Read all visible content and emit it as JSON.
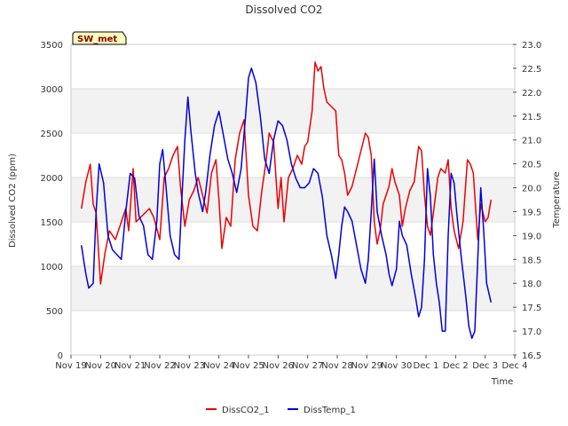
{
  "chart_data": {
    "type": "line",
    "title": "Dissolved CO2",
    "station_label": "SW_met",
    "xlabel": "Time",
    "ylabel_left": "Dissolved CO2 (ppm)",
    "ylabel_right": "Temperature",
    "ylim_left": [
      0,
      3500
    ],
    "ylim_right": [
      16.5,
      23.0
    ],
    "xlim": [
      0,
      15
    ],
    "x_tick_labels": [
      "Nov 19",
      "Nov 20",
      "Nov 21",
      "Nov 22",
      "Nov 23",
      "Nov 24",
      "Nov 25",
      "Nov 26",
      "Nov 27",
      "Nov 28",
      "Nov 29",
      "Nov 30",
      "Dec 1",
      "Dec 2",
      "Dec 3",
      "Dec 4"
    ],
    "y_ticks_left": [
      0,
      500,
      1000,
      1500,
      2000,
      2500,
      3000,
      3500
    ],
    "y_ticks_right": [
      16.5,
      17.0,
      17.5,
      18.0,
      18.5,
      19.0,
      19.5,
      20.0,
      20.5,
      21.0,
      21.5,
      22.0,
      22.5,
      23.0
    ],
    "grid": true,
    "legend_position": "bottom-center",
    "series": [
      {
        "name": "DissCO2_1",
        "color": "#ee0000",
        "axis": "left",
        "points": [
          [
            0.35,
            1650
          ],
          [
            0.5,
            1950
          ],
          [
            0.65,
            2150
          ],
          [
            0.75,
            1700
          ],
          [
            0.85,
            1600
          ],
          [
            1.0,
            800
          ],
          [
            1.15,
            1150
          ],
          [
            1.3,
            1400
          ],
          [
            1.5,
            1300
          ],
          [
            1.7,
            1500
          ],
          [
            1.85,
            1650
          ],
          [
            1.95,
            1400
          ],
          [
            2.1,
            2100
          ],
          [
            2.2,
            1500
          ],
          [
            2.35,
            1550
          ],
          [
            2.5,
            1600
          ],
          [
            2.65,
            1650
          ],
          [
            2.8,
            1550
          ],
          [
            3.0,
            1300
          ],
          [
            3.15,
            2000
          ],
          [
            3.3,
            2100
          ],
          [
            3.45,
            2250
          ],
          [
            3.6,
            2350
          ],
          [
            3.7,
            1900
          ],
          [
            3.85,
            1450
          ],
          [
            4.0,
            1750
          ],
          [
            4.15,
            1850
          ],
          [
            4.3,
            2000
          ],
          [
            4.45,
            1800
          ],
          [
            4.6,
            1600
          ],
          [
            4.75,
            2050
          ],
          [
            4.9,
            2200
          ],
          [
            5.0,
            1750
          ],
          [
            5.1,
            1200
          ],
          [
            5.25,
            1550
          ],
          [
            5.4,
            1450
          ],
          [
            5.55,
            2200
          ],
          [
            5.7,
            2500
          ],
          [
            5.85,
            2650
          ],
          [
            6.0,
            1800
          ],
          [
            6.15,
            1450
          ],
          [
            6.3,
            1400
          ],
          [
            6.45,
            1850
          ],
          [
            6.6,
            2200
          ],
          [
            6.7,
            2500
          ],
          [
            6.85,
            2400
          ],
          [
            7.0,
            1650
          ],
          [
            7.1,
            2000
          ],
          [
            7.2,
            1500
          ],
          [
            7.35,
            2000
          ],
          [
            7.5,
            2100
          ],
          [
            7.65,
            2250
          ],
          [
            7.8,
            2150
          ],
          [
            7.9,
            2350
          ],
          [
            8.0,
            2400
          ],
          [
            8.15,
            2750
          ],
          [
            8.25,
            3300
          ],
          [
            8.35,
            3200
          ],
          [
            8.45,
            3250
          ],
          [
            8.55,
            3000
          ],
          [
            8.65,
            2850
          ],
          [
            8.8,
            2800
          ],
          [
            8.95,
            2750
          ],
          [
            9.05,
            2250
          ],
          [
            9.15,
            2200
          ],
          [
            9.25,
            2050
          ],
          [
            9.35,
            1800
          ],
          [
            9.5,
            1900
          ],
          [
            9.65,
            2100
          ],
          [
            9.8,
            2300
          ],
          [
            9.95,
            2500
          ],
          [
            10.05,
            2450
          ],
          [
            10.15,
            2250
          ],
          [
            10.25,
            1500
          ],
          [
            10.35,
            1250
          ],
          [
            10.45,
            1400
          ],
          [
            10.55,
            1700
          ],
          [
            10.65,
            1800
          ],
          [
            10.75,
            1900
          ],
          [
            10.85,
            2100
          ],
          [
            10.95,
            1950
          ],
          [
            11.1,
            1800
          ],
          [
            11.2,
            1450
          ],
          [
            11.3,
            1650
          ],
          [
            11.45,
            1850
          ],
          [
            11.6,
            1950
          ],
          [
            11.75,
            2350
          ],
          [
            11.85,
            2300
          ],
          [
            11.95,
            1800
          ],
          [
            12.05,
            1450
          ],
          [
            12.15,
            1350
          ],
          [
            12.25,
            1600
          ],
          [
            12.4,
            2000
          ],
          [
            12.5,
            2100
          ],
          [
            12.65,
            2050
          ],
          [
            12.75,
            2200
          ],
          [
            12.85,
            1650
          ],
          [
            12.95,
            1400
          ],
          [
            13.1,
            1200
          ],
          [
            13.25,
            1500
          ],
          [
            13.4,
            2200
          ],
          [
            13.5,
            2150
          ],
          [
            13.6,
            2050
          ],
          [
            13.75,
            1300
          ],
          [
            13.85,
            1700
          ],
          [
            14.0,
            1500
          ],
          [
            14.1,
            1550
          ],
          [
            14.2,
            1750
          ]
        ]
      },
      {
        "name": "DissTemp_1",
        "color": "#0000dd",
        "axis": "right",
        "points": [
          [
            0.35,
            18.8
          ],
          [
            0.5,
            18.2
          ],
          [
            0.6,
            17.9
          ],
          [
            0.75,
            18.0
          ],
          [
            0.85,
            19.5
          ],
          [
            0.95,
            20.5
          ],
          [
            1.1,
            20.1
          ],
          [
            1.25,
            19.0
          ],
          [
            1.4,
            18.7
          ],
          [
            1.55,
            18.6
          ],
          [
            1.7,
            18.5
          ],
          [
            1.85,
            19.5
          ],
          [
            2.0,
            20.3
          ],
          [
            2.15,
            20.2
          ],
          [
            2.3,
            19.4
          ],
          [
            2.45,
            19.2
          ],
          [
            2.6,
            18.6
          ],
          [
            2.75,
            18.5
          ],
          [
            2.9,
            19.3
          ],
          [
            3.0,
            20.5
          ],
          [
            3.1,
            20.8
          ],
          [
            3.2,
            20.1
          ],
          [
            3.35,
            19.0
          ],
          [
            3.5,
            18.6
          ],
          [
            3.65,
            18.5
          ],
          [
            3.75,
            19.8
          ],
          [
            3.85,
            21.0
          ],
          [
            3.95,
            21.9
          ],
          [
            4.05,
            21.2
          ],
          [
            4.2,
            20.3
          ],
          [
            4.3,
            19.9
          ],
          [
            4.45,
            19.5
          ],
          [
            4.55,
            19.9
          ],
          [
            4.7,
            20.7
          ],
          [
            4.85,
            21.3
          ],
          [
            5.0,
            21.6
          ],
          [
            5.15,
            21.1
          ],
          [
            5.3,
            20.6
          ],
          [
            5.45,
            20.3
          ],
          [
            5.6,
            19.9
          ],
          [
            5.75,
            20.4
          ],
          [
            5.9,
            21.5
          ],
          [
            6.0,
            22.3
          ],
          [
            6.1,
            22.5
          ],
          [
            6.25,
            22.2
          ],
          [
            6.4,
            21.5
          ],
          [
            6.55,
            20.6
          ],
          [
            6.7,
            20.3
          ],
          [
            6.85,
            21.0
          ],
          [
            7.0,
            21.4
          ],
          [
            7.15,
            21.3
          ],
          [
            7.3,
            21.0
          ],
          [
            7.45,
            20.5
          ],
          [
            7.6,
            20.2
          ],
          [
            7.75,
            20.0
          ],
          [
            7.9,
            20.0
          ],
          [
            8.05,
            20.1
          ],
          [
            8.2,
            20.4
          ],
          [
            8.35,
            20.3
          ],
          [
            8.5,
            19.8
          ],
          [
            8.65,
            19.0
          ],
          [
            8.8,
            18.6
          ],
          [
            8.95,
            18.1
          ],
          [
            9.05,
            18.6
          ],
          [
            9.15,
            19.2
          ],
          [
            9.25,
            19.6
          ],
          [
            9.35,
            19.5
          ],
          [
            9.5,
            19.3
          ],
          [
            9.65,
            18.8
          ],
          [
            9.8,
            18.3
          ],
          [
            9.95,
            18.0
          ],
          [
            10.05,
            18.5
          ],
          [
            10.15,
            19.5
          ],
          [
            10.25,
            20.6
          ],
          [
            10.35,
            19.5
          ],
          [
            10.5,
            19.0
          ],
          [
            10.65,
            18.6
          ],
          [
            10.75,
            18.2
          ],
          [
            10.85,
            17.95
          ],
          [
            11.0,
            18.3
          ],
          [
            11.1,
            19.3
          ],
          [
            11.2,
            19.0
          ],
          [
            11.35,
            18.8
          ],
          [
            11.5,
            18.2
          ],
          [
            11.65,
            17.7
          ],
          [
            11.75,
            17.3
          ],
          [
            11.85,
            17.5
          ],
          [
            11.95,
            18.5
          ],
          [
            12.05,
            20.4
          ],
          [
            12.15,
            19.8
          ],
          [
            12.25,
            18.6
          ],
          [
            12.35,
            18.0
          ],
          [
            12.45,
            17.6
          ],
          [
            12.55,
            17.0
          ],
          [
            12.65,
            17.0
          ],
          [
            12.75,
            19.0
          ],
          [
            12.85,
            20.3
          ],
          [
            12.95,
            20.1
          ],
          [
            13.05,
            19.4
          ],
          [
            13.2,
            18.5
          ],
          [
            13.35,
            17.7
          ],
          [
            13.45,
            17.1
          ],
          [
            13.55,
            16.85
          ],
          [
            13.65,
            17.0
          ],
          [
            13.75,
            18.5
          ],
          [
            13.85,
            20.0
          ],
          [
            13.95,
            19.1
          ],
          [
            14.05,
            18.0
          ],
          [
            14.2,
            17.6
          ]
        ]
      }
    ]
  }
}
